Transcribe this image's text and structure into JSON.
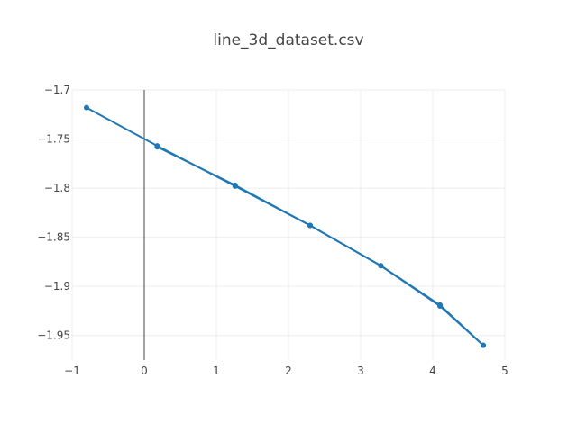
{
  "chart_data": {
    "type": "line",
    "title": "line_3d_dataset.csv",
    "xlabel": "",
    "ylabel": "",
    "xlim": [
      -1,
      5
    ],
    "ylim": [
      -1.975,
      -1.7
    ],
    "grid": true,
    "x_ticks": [
      {
        "value": -1,
        "label": "−1"
      },
      {
        "value": 0,
        "label": "0"
      },
      {
        "value": 1,
        "label": "1"
      },
      {
        "value": 2,
        "label": "2"
      },
      {
        "value": 3,
        "label": "3"
      },
      {
        "value": 4,
        "label": "4"
      },
      {
        "value": 5,
        "label": "5"
      }
    ],
    "y_ticks": [
      {
        "value": -1.7,
        "label": "−1.7"
      },
      {
        "value": -1.75,
        "label": "−1.75"
      },
      {
        "value": -1.8,
        "label": "−1.8"
      },
      {
        "value": -1.85,
        "label": "−1.85"
      },
      {
        "value": -1.9,
        "label": "−1.9"
      },
      {
        "value": -1.95,
        "label": "−1.95"
      }
    ],
    "series": [
      {
        "color": "#1f77b4",
        "x": [
          -0.8,
          0.18,
          1.26,
          2.3,
          3.28,
          4.1,
          4.7
        ],
        "y": [
          -1.718,
          -1.757,
          -1.798,
          -1.838,
          -1.879,
          -1.919,
          -1.96
        ]
      },
      {
        "color": "#1f77b4",
        "x": [
          0.18,
          1.26,
          2.3,
          3.28,
          4.1,
          4.7
        ],
        "y": [
          -1.758,
          -1.797,
          -1.838,
          -1.879,
          -1.92,
          -1.96
        ]
      }
    ]
  },
  "colors": {
    "grid": "#eeeeee",
    "zero_line": "#444444",
    "text": "#444444"
  }
}
